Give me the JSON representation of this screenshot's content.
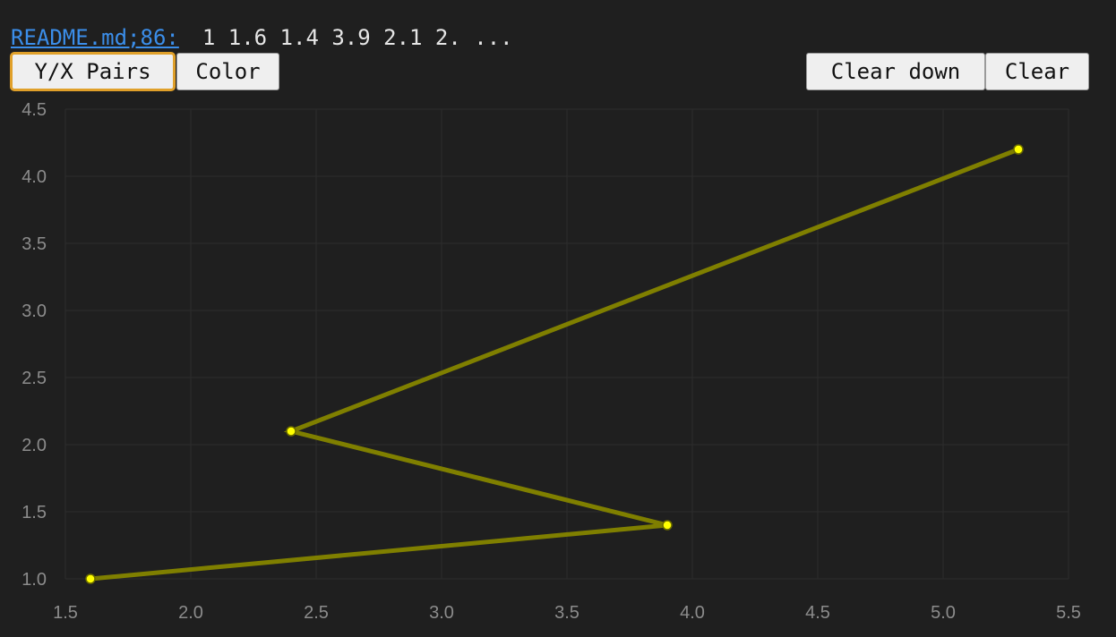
{
  "header": {
    "source_link": "README.md;86:",
    "data_preview": "1 1.6 1.4 3.9 2.1 2. ..."
  },
  "toolbar": {
    "yx_pairs_label": "Y/X Pairs",
    "color_label": "Color",
    "clear_down_label": "Clear down",
    "clear_label": "Clear"
  },
  "colors": {
    "background": "#1f1f1f",
    "link": "#3b8eea",
    "line": "#7f7f00",
    "marker": "#ffff00",
    "active_button_border": "#e0a02a"
  },
  "chart_data": {
    "type": "line",
    "title": "",
    "xlabel": "",
    "ylabel": "",
    "xlim": [
      1.5,
      5.5
    ],
    "ylim": [
      1.0,
      4.5
    ],
    "xticks": [
      "1.5",
      "2.0",
      "2.5",
      "3.0",
      "3.5",
      "4.0",
      "4.5",
      "5.0",
      "5.5"
    ],
    "yticks": [
      "1.0",
      "1.5",
      "2.0",
      "2.5",
      "3.0",
      "3.5",
      "4.0",
      "4.5"
    ],
    "grid": true,
    "series": [
      {
        "points": [
          {
            "x": 1.6,
            "y": 1.0
          },
          {
            "x": 3.9,
            "y": 1.4
          },
          {
            "x": 2.4,
            "y": 2.1
          },
          {
            "x": 5.3,
            "y": 4.2
          }
        ]
      }
    ]
  }
}
